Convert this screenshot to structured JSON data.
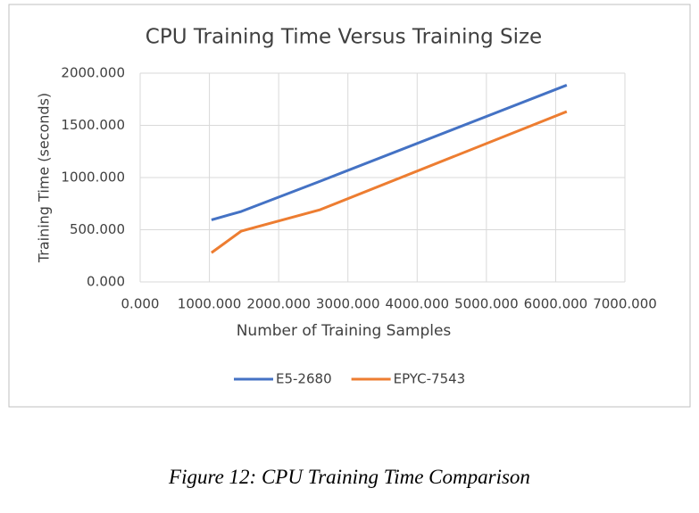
{
  "chart_data": {
    "type": "line",
    "title": "CPU Training Time Versus Training Size",
    "x_label": "Number of Training Samples",
    "y_label": "Training Time (seconds)",
    "x": [
      1030,
      1460,
      2600,
      6160
    ],
    "series": [
      {
        "name": "E5-2680",
        "color": "#4472c4",
        "values": [
          595,
          675,
          965,
          1885
        ]
      },
      {
        "name": "EPYC-7543",
        "color": "#ed7d31",
        "values": [
          280,
          487,
          692,
          1632
        ]
      }
    ],
    "xlim": [
      0,
      7000
    ],
    "xticks": [
      {
        "value": 0,
        "label": "0.000"
      },
      {
        "value": 1000,
        "label": "1000.000"
      },
      {
        "value": 2000,
        "label": "2000.000"
      },
      {
        "value": 3000,
        "label": "3000.000"
      },
      {
        "value": 4000,
        "label": "4000.000"
      },
      {
        "value": 5000,
        "label": "5000.000"
      },
      {
        "value": 6000,
        "label": "6000.000"
      },
      {
        "value": 7000,
        "label": "7000.000"
      }
    ],
    "ylim": [
      0,
      2000
    ],
    "yticks": [
      {
        "value": 0,
        "label": "0.000"
      },
      {
        "value": 500,
        "label": "500.000"
      },
      {
        "value": 1000,
        "label": "1000.000"
      },
      {
        "value": 1500,
        "label": "1500.000"
      },
      {
        "value": 2000,
        "label": "2000.000"
      }
    ],
    "grid": true,
    "legend": "bottom"
  },
  "caption": "Figure 12: CPU Training Time Comparison"
}
